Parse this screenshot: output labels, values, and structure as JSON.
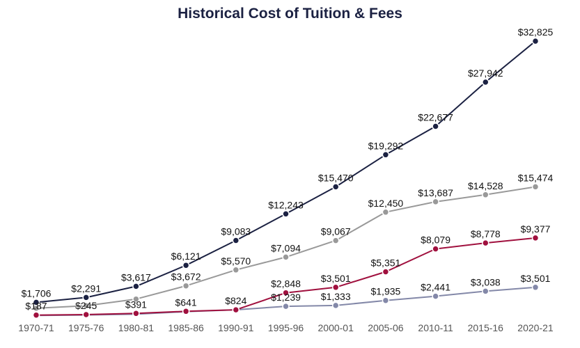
{
  "chart_data": {
    "type": "line",
    "title": "Historical Cost of Tuition & Fees",
    "xlabel": "",
    "ylabel": "",
    "categories": [
      "1970-71",
      "1975-76",
      "1980-81",
      "1985-86",
      "1990-91",
      "1995-96",
      "2000-01",
      "2005-06",
      "2010-11",
      "2015-16",
      "2020-21"
    ],
    "ylim": [
      0,
      33000
    ],
    "grid": false,
    "legend": "none",
    "series": [
      {
        "color": "#1b2142",
        "values": [
          1706,
          2291,
          3617,
          6121,
          9083,
          12243,
          15470,
          19292,
          22677,
          27942,
          32825
        ],
        "labels": [
          "$1,706",
          "$2,291",
          "$3,617",
          "$6,121",
          "$9,083",
          "$12,243",
          "$15,470",
          "$19,292",
          "$22,677",
          "$27,942",
          "$32,825"
        ]
      },
      {
        "color": "#999999",
        "values": [
          1000,
          1300,
          2100,
          3672,
          5570,
          7094,
          9067,
          12450,
          13687,
          14528,
          15474
        ],
        "labels": [
          "",
          "",
          "",
          "$3,672",
          "$5,570",
          "$7,094",
          "$9,067",
          "$12,450",
          "$13,687",
          "$14,528",
          "$15,474"
        ]
      },
      {
        "color": "#a0103e",
        "values": [
          187,
          245,
          391,
          641,
          824,
          2848,
          3501,
          5351,
          8079,
          8778,
          9377
        ],
        "labels": [
          "$187",
          "$245",
          "$391",
          "$641",
          "$824",
          "$2,848",
          "$3,501",
          "$5,351",
          "$8,079",
          "$8,778",
          "$9,377"
        ]
      },
      {
        "color": "#8388a8",
        "values": [
          150,
          200,
          300,
          600,
          824,
          1239,
          1333,
          1935,
          2441,
          3038,
          3501
        ],
        "labels": [
          "",
          "",
          "",
          "",
          "",
          "$1,239",
          "$1,333",
          "$1,935",
          "$2,441",
          "$3,038",
          "$3,501"
        ]
      }
    ]
  }
}
